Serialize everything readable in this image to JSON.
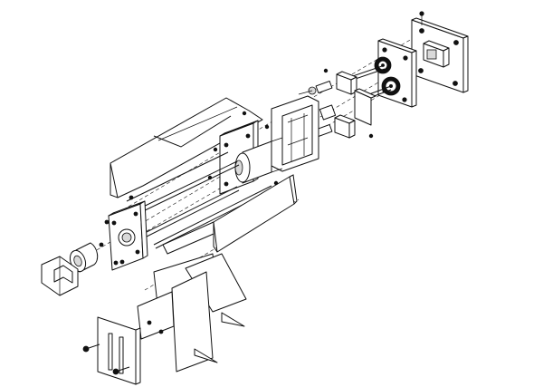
{
  "drawing": {
    "style": "exploded-isometric-line-drawing",
    "colors": {
      "line": "#111111",
      "background": "#ffffff",
      "shade": "#d9d9d9"
    },
    "visible_text": []
  }
}
